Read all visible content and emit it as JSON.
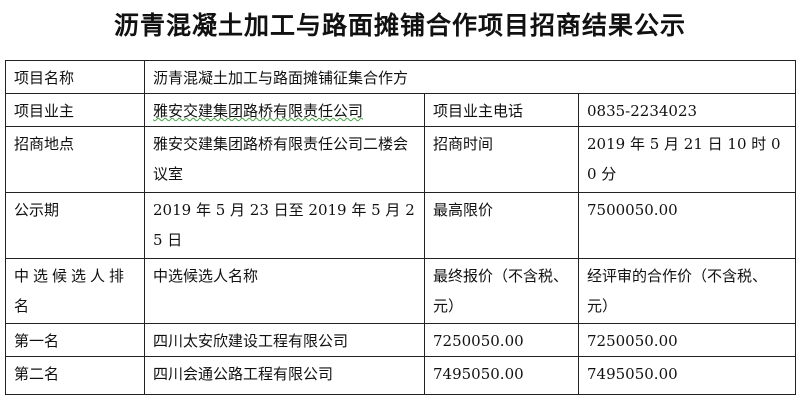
{
  "title": "沥青混凝土加工与路面摊铺合作项目招商结果公示",
  "rows": {
    "project_name_label": "项目名称",
    "project_name": "沥青混凝土加工与路面摊铺征集合作方",
    "owner_label": "项目业主",
    "owner": "雅安交建集团路桥有限责任公司",
    "owner_phone_label": "项目业主电话",
    "owner_phone": "0835-2234023",
    "location_label": "招商地点",
    "location": "雅安交建集团路桥有限责任公司二楼会议室",
    "time_label": "招商时间",
    "time": "2019 年 5 月 21 日 10 时 00 分",
    "period_label": "公示期",
    "period": "2019 年 5 月 23 日至 2019 年 5 月 25 日",
    "max_price_label": "最高限价",
    "max_price": "7500050.00"
  },
  "candidates": {
    "headers": [
      "中选候选人排名",
      "中选候选人名称",
      "最终报价（不含税、元）",
      "经评审的合作价（不含税、元）"
    ],
    "items": [
      {
        "rank": "第一名",
        "name": "四川太安欣建设工程有限公司",
        "final_price": "7250050.00",
        "reviewed_price": "7250050.00"
      },
      {
        "rank": "第二名",
        "name": "四川会通公路工程有限公司",
        "final_price": "7495050.00",
        "reviewed_price": "7495050.00"
      }
    ]
  }
}
